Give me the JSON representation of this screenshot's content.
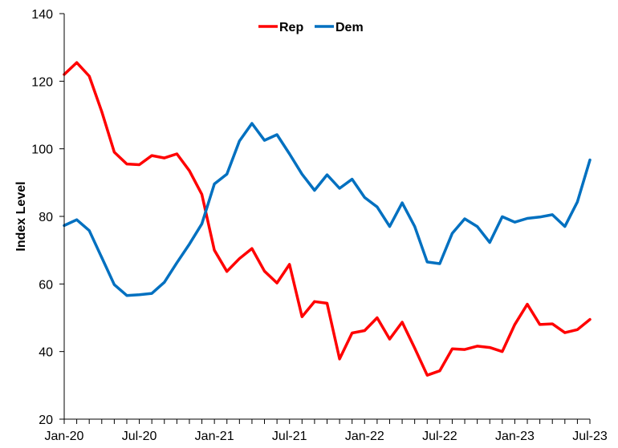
{
  "chart_data": {
    "type": "line",
    "title": "",
    "xlabel": "",
    "ylabel": "Index Level",
    "ylim": [
      20,
      140
    ],
    "yticks": [
      "20",
      "40",
      "60",
      "80",
      "100",
      "120",
      "140"
    ],
    "xticks": [
      "Jan-20",
      "Jul-20",
      "Jan-21",
      "Jul-21",
      "Jan-22",
      "Jul-22",
      "Jan-23",
      "Jul-23"
    ],
    "x": [
      "Jan-20",
      "Feb-20",
      "Mar-20",
      "Apr-20",
      "May-20",
      "Jun-20",
      "Jul-20",
      "Aug-20",
      "Sep-20",
      "Oct-20",
      "Nov-20",
      "Dec-20",
      "Jan-21",
      "Feb-21",
      "Mar-21",
      "Apr-21",
      "May-21",
      "Jun-21",
      "Jul-21",
      "Aug-21",
      "Sep-21",
      "Oct-21",
      "Nov-21",
      "Dec-21",
      "Jan-22",
      "Feb-22",
      "Mar-22",
      "Apr-22",
      "May-22",
      "Jun-22",
      "Jul-22",
      "Aug-22",
      "Sep-22",
      "Oct-22",
      "Nov-22",
      "Dec-22",
      "Jan-23",
      "Feb-23",
      "Mar-23",
      "Apr-23",
      "May-23",
      "Jun-23",
      "Jul-23"
    ],
    "grid": false,
    "legend_position": "top-center",
    "series": [
      {
        "name": "Rep",
        "color": "#ff0000",
        "values": [
          122,
          125.5,
          121.5,
          111,
          99,
          95.5,
          95.3,
          98,
          97.3,
          98.5,
          93.5,
          86.5,
          70,
          63.7,
          67.5,
          70.5,
          63.8,
          60.3,
          65.8,
          50.3,
          54.8,
          54.3,
          37.8,
          45.5,
          46.2,
          50,
          43.7,
          48.7,
          41,
          33,
          34.3,
          40.8,
          40.6,
          41.6,
          41.2,
          40,
          48,
          54,
          48,
          48.2,
          45.6,
          46.5,
          49.5
        ]
      },
      {
        "name": "Dem",
        "color": "#0070c0",
        "values": [
          77.3,
          79,
          75.8,
          67.8,
          59.8,
          56.6,
          56.8,
          57.2,
          60.5,
          66.3,
          71.8,
          77.8,
          89.6,
          92.5,
          102.3,
          107.5,
          102.5,
          104.2,
          98.5,
          92.5,
          87.7,
          92.3,
          88.3,
          91,
          85.6,
          82.8,
          77,
          84,
          77,
          66.5,
          66,
          75,
          79.3,
          77,
          72.3,
          79.9,
          78.3,
          79.4,
          79.8,
          80.5,
          77,
          84.3,
          96.7
        ]
      }
    ]
  }
}
